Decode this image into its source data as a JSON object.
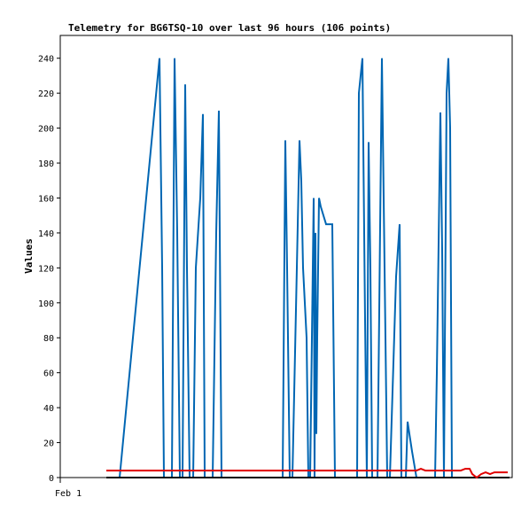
{
  "chart_data": {
    "type": "line",
    "title": "Telemetry for BG6TSQ-10 over last 96 hours (106 points)",
    "ylabel": "Values",
    "xlabel": "",
    "x_tick_labels": [
      "Feb 1"
    ],
    "ylim": [
      0,
      250
    ],
    "y_ticks": [
      0,
      20,
      40,
      60,
      80,
      100,
      120,
      140,
      160,
      180,
      200,
      220,
      240
    ],
    "grid": false,
    "legend": "none",
    "series": [
      {
        "color": "#0066b3",
        "x": [
          120,
          135,
          180,
          183,
          185,
          194,
          197,
          200,
          203,
          206,
          209,
          211,
          214,
          216,
          218,
          221,
          226,
          229,
          231,
          234,
          236,
          240,
          244,
          247,
          250,
          253,
          315,
          319,
          322,
          324,
          327,
          330,
          335,
          338,
          340,
          342,
          346,
          348,
          350,
          354,
          355,
          356,
          357,
          358,
          360,
          362,
          368,
          375,
          378,
          400,
          403,
          405,
          409,
          412,
          414,
          416,
          418,
          420,
          426,
          431,
          434,
          437,
          440,
          447,
          451,
          453,
          458,
          460,
          462,
          465,
          470,
          487,
          491,
          493,
          497,
          499,
          501,
          504,
          506,
          508,
          510,
          513
        ],
        "values": [
          0,
          0,
          240,
          120,
          0,
          0,
          240,
          140,
          0,
          0,
          225,
          120,
          0,
          0,
          0,
          120,
          160,
          208,
          0,
          0,
          0,
          0,
          140,
          210,
          0,
          0,
          0,
          0,
          193,
          120,
          0,
          0,
          120,
          193,
          170,
          120,
          80,
          0,
          0,
          160,
          0,
          140,
          25,
          80,
          160,
          155,
          145,
          145,
          0,
          0,
          0,
          220,
          240,
          90,
          0,
          192,
          120,
          0,
          0,
          240,
          120,
          0,
          0,
          115,
          145,
          0,
          0,
          32,
          25,
          15,
          0,
          0,
          0,
          60,
          209,
          130,
          0,
          220,
          240,
          200,
          0,
          0
        ]
      },
      {
        "color": "#e00000",
        "x": [
          120,
          140,
          200,
          260,
          320,
          380,
          440,
          460,
          465,
          470,
          475,
          480,
          500,
          505,
          510,
          515,
          520,
          525,
          530,
          533,
          538,
          543,
          548,
          553,
          558,
          563,
          568,
          573
        ],
        "values": [
          4,
          4,
          4,
          4,
          4,
          4,
          4,
          4,
          4,
          4,
          5,
          4,
          4,
          4,
          4,
          4,
          4,
          5,
          5,
          2,
          0,
          2,
          3,
          2,
          3,
          3,
          3,
          3
        ]
      },
      {
        "color": "#000000",
        "x": [
          120,
          575
        ],
        "values": [
          0,
          0
        ]
      }
    ]
  }
}
